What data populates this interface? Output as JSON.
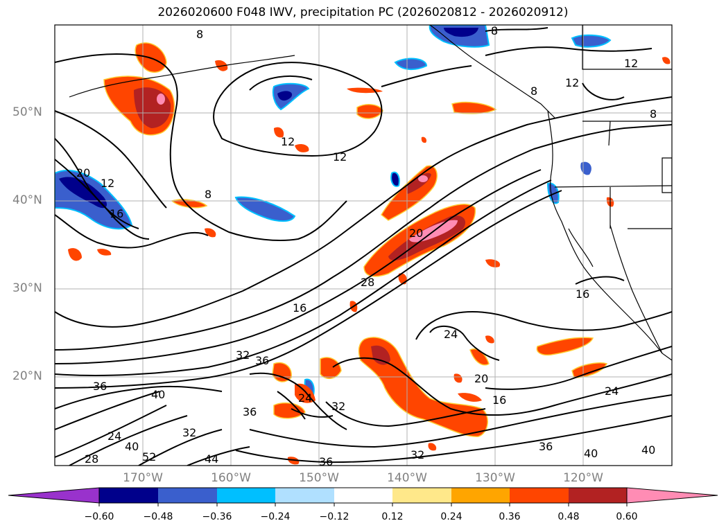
{
  "title": "2026020600 F048 IWV, precipitation PC (2026020812 - 2026020912)",
  "lat_labels": [
    "50°N",
    "40°N",
    "30°N",
    "20°N"
  ],
  "lon_labels": [
    "170°W",
    "160°W",
    "150°W",
    "140°W",
    "130°W",
    "120°W"
  ],
  "contour_labels": [
    {
      "text": "8"
    },
    {
      "text": "8"
    },
    {
      "text": "8"
    },
    {
      "text": "8"
    },
    {
      "text": "8"
    },
    {
      "text": "12"
    },
    {
      "text": "12"
    },
    {
      "text": "12"
    },
    {
      "text": "12"
    },
    {
      "text": "12"
    },
    {
      "text": "16"
    },
    {
      "text": "16"
    },
    {
      "text": "16"
    },
    {
      "text": "16"
    },
    {
      "text": "20"
    },
    {
      "text": "20"
    },
    {
      "text": "20"
    },
    {
      "text": "24"
    },
    {
      "text": "24"
    },
    {
      "text": "24"
    },
    {
      "text": "24"
    },
    {
      "text": "28"
    },
    {
      "text": "28"
    },
    {
      "text": "32"
    },
    {
      "text": "32"
    },
    {
      "text": "32"
    },
    {
      "text": "32"
    },
    {
      "text": "36"
    },
    {
      "text": "36"
    },
    {
      "text": "36"
    },
    {
      "text": "36"
    },
    {
      "text": "36"
    },
    {
      "text": "40"
    },
    {
      "text": "40"
    },
    {
      "text": "40"
    },
    {
      "text": "40"
    },
    {
      "text": "44"
    },
    {
      "text": "52"
    }
  ],
  "colorbar": {
    "ticks": [
      "−0.60",
      "−0.48",
      "−0.36",
      "−0.24",
      "−0.12",
      "0.12",
      "0.24",
      "0.36",
      "0.48",
      "0.60"
    ],
    "colors": [
      "#9932cc",
      "#00008b",
      "#3a5fcd",
      "#00bfff",
      "#b0e0ff",
      "#ffffff",
      "#ffe88a",
      "#ffa500",
      "#ff4500",
      "#b22222",
      "#ff8cb4"
    ]
  }
}
